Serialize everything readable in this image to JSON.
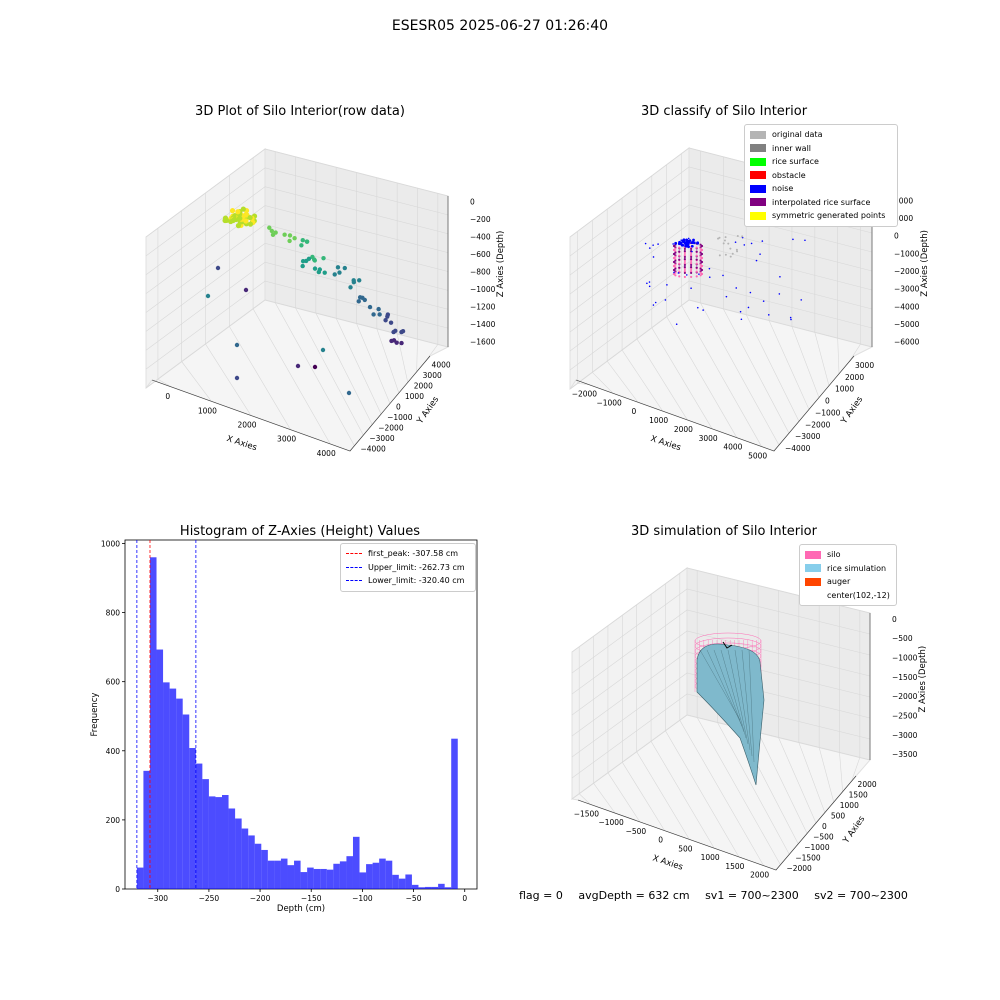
{
  "suptitle": "ESESR05 2025-06-27 01:26:40",
  "chart_data": [
    {
      "type": "scatter",
      "title": "3D Plot of Silo Interior(row data)",
      "xlabel": "X Axies",
      "ylabel": "Y Axies",
      "zlabel": "Z Axies (Depth)",
      "x_ticks": [
        "0",
        "1000",
        "2000",
        "3000",
        "4000"
      ],
      "y_ticks": [
        "−4000",
        "−3000",
        "−2000",
        "−1000",
        "0",
        "1000",
        "2000",
        "3000",
        "4000"
      ],
      "z_ticks": [
        "0",
        "−200",
        "−400",
        "−600",
        "−800",
        "−1000",
        "−1200",
        "−1400",
        "−1600"
      ],
      "colormap": "viridis"
    },
    {
      "type": "scatter",
      "title": "3D classify of Silo Interior",
      "xlabel": "X Axies",
      "ylabel": "Y Axies",
      "zlabel": "Z Axies (Depth)",
      "x_ticks": [
        "−2000",
        "−1000",
        "0",
        "1000",
        "2000",
        "3000",
        "4000",
        "5000"
      ],
      "y_ticks": [
        "−4000",
        "−3000",
        "−2000",
        "−1000",
        "0",
        "1000",
        "2000",
        "3000"
      ],
      "z_ticks": [
        "2000",
        "1000",
        "0",
        "−1000",
        "−2000",
        "−3000",
        "−4000",
        "−5000",
        "−6000"
      ],
      "legend": [
        {
          "label": "original data",
          "color": "#b4b4b4"
        },
        {
          "label": "inner wall",
          "color": "#808080"
        },
        {
          "label": "rice surface",
          "color": "#00ff00"
        },
        {
          "label": "obstacle",
          "color": "#ff0000"
        },
        {
          "label": "noise",
          "color": "#0000ff"
        },
        {
          "label": "interpolated rice surface",
          "color": "#800080"
        },
        {
          "label": "symmetric generated points",
          "color": "#ffff00"
        }
      ]
    },
    {
      "type": "bar",
      "title": "Histogram of Z-Axies (Height) Values",
      "xlabel": "Depth (cm)",
      "ylabel": "Frequency",
      "xlim": [
        -332,
        12
      ],
      "ylim": [
        0,
        1010
      ],
      "x_ticks": [
        -300,
        -250,
        -200,
        -150,
        -100,
        -50,
        0
      ],
      "y_ticks": [
        0,
        200,
        400,
        600,
        800,
        1000
      ],
      "bar_color": "#0000ff",
      "bin_start": -320.4,
      "bin_width": 6.4,
      "values": [
        62,
        342,
        960,
        693,
        598,
        580,
        551,
        505,
        408,
        363,
        318,
        268,
        266,
        272,
        233,
        204,
        175,
        155,
        131,
        113,
        82,
        82,
        88,
        69,
        82,
        49,
        62,
        58,
        58,
        56,
        73,
        80,
        95,
        151,
        48,
        72,
        76,
        88,
        82,
        41,
        30,
        42,
        12,
        5,
        6,
        6,
        15,
        5,
        435
      ],
      "lines": [
        {
          "label": "first_peak: -307.58 cm",
          "x": -307.58,
          "color": "#ff0000"
        },
        {
          "label": "Upper_limit: -262.73 cm",
          "x": -262.73,
          "color": "#0000ff"
        },
        {
          "label": "Lower_limit: -320.40 cm",
          "x": -320.4,
          "color": "#0000ff"
        }
      ]
    },
    {
      "type": "surface",
      "title": "3D simulation of Silo Interior",
      "xlabel": "X Axies",
      "ylabel": "Y Axies",
      "zlabel": "Z Axies (Depth)",
      "x_ticks": [
        "−1500",
        "−1000",
        "−500",
        "0",
        "500",
        "1000",
        "1500",
        "2000"
      ],
      "y_ticks": [
        "−2000",
        "−1500",
        "−1000",
        "−500",
        "0",
        "500",
        "1000",
        "1500",
        "2000"
      ],
      "z_ticks": [
        "0",
        "−500",
        "−1000",
        "−1500",
        "−2000",
        "−2500",
        "−3000",
        "−3500"
      ],
      "legend": [
        {
          "label": "silo",
          "color": "#ff69b4"
        },
        {
          "label": "rice simulation",
          "color": "#87ceeb"
        },
        {
          "label": "auger",
          "color": "#ff4500"
        },
        {
          "label": "center(102,-12)",
          "color": ""
        }
      ]
    }
  ],
  "footer": {
    "flag": "flag = 0",
    "avg_depth": "avgDepth = 632 cm",
    "sv1": "sv1 = 700~2300",
    "sv2": "sv2 = 700~2300"
  }
}
